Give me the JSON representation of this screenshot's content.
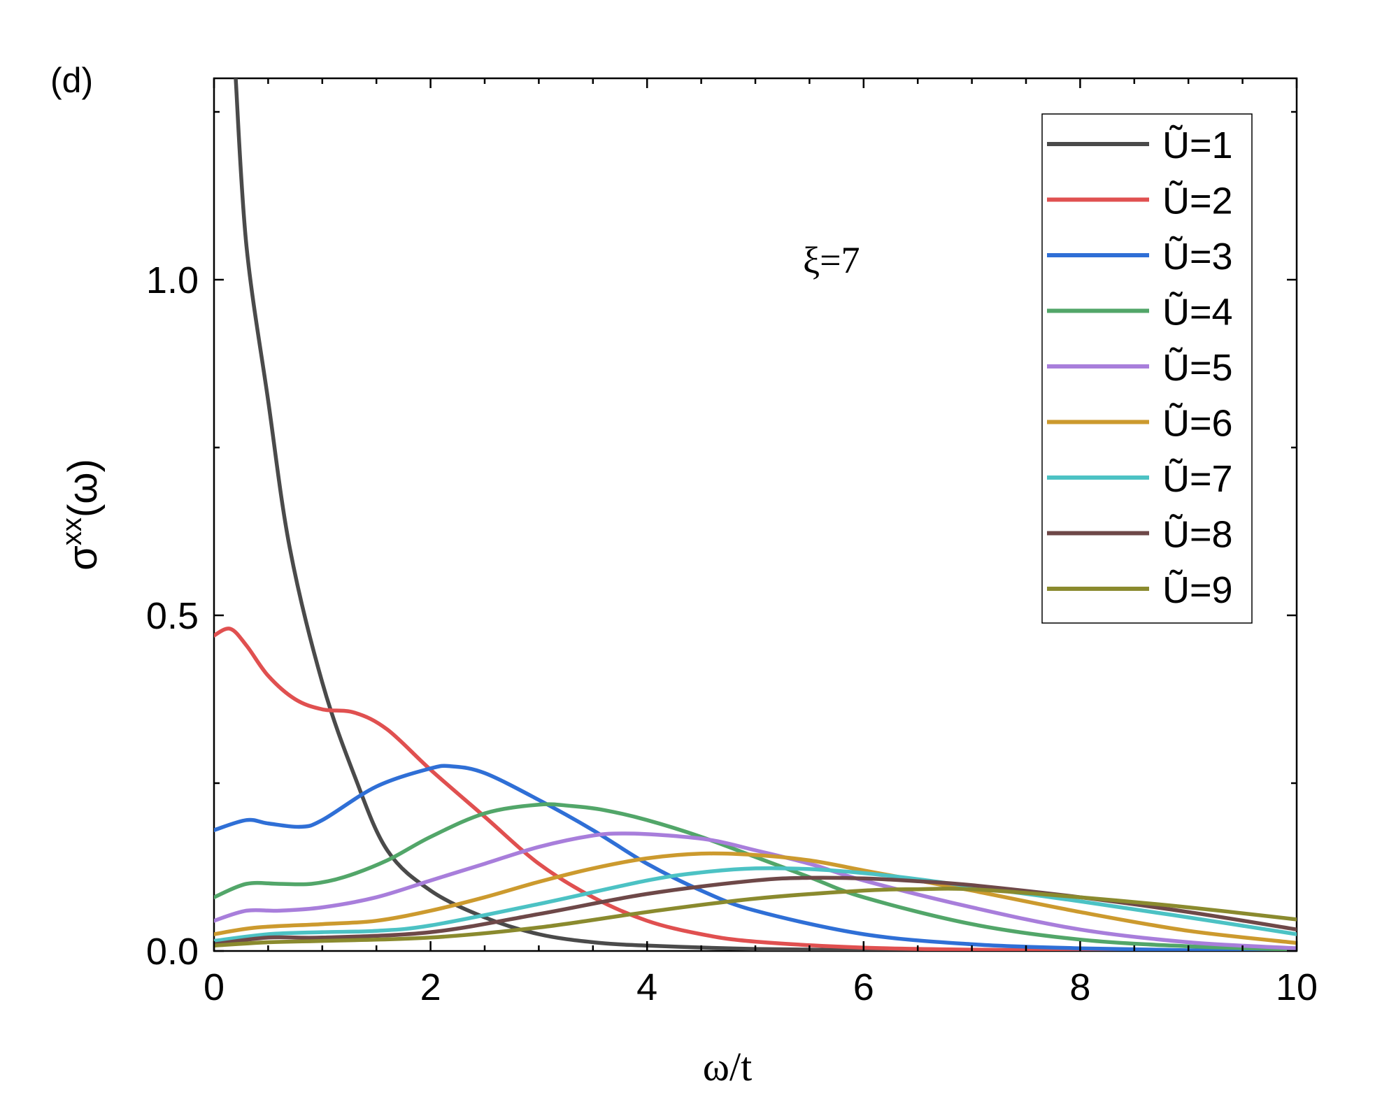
{
  "panel_label": "(d)",
  "annotation": "ξ=7",
  "chart_data": {
    "type": "line",
    "title": "",
    "xlabel": "ω/t",
    "ylabel_base": "σ",
    "ylabel_sup": "xx",
    "ylabel_tail": "(ω)",
    "xlim": [
      0,
      10
    ],
    "ylim": [
      0,
      1.3
    ],
    "x_ticks": [
      0,
      2,
      4,
      6,
      8,
      10
    ],
    "x_tick_labels": [
      "0",
      "2",
      "4",
      "6",
      "8",
      "10"
    ],
    "y_ticks": [
      0,
      0.5,
      1.0
    ],
    "y_tick_labels": [
      "0.0",
      "0.5",
      "1.0"
    ],
    "grid": false,
    "legend_position": "top-right",
    "series": [
      {
        "name": "Ũ=1",
        "color": "#4a4a4a",
        "x": [
          0.2,
          0.3,
          0.5,
          0.7,
          1.0,
          1.3,
          1.6,
          2.0,
          2.5,
          3.0,
          3.5,
          4.0,
          5.0,
          6.0,
          7.0,
          8.0,
          10.0
        ],
        "y": [
          1.3,
          1.05,
          0.82,
          0.6,
          0.4,
          0.26,
          0.15,
          0.09,
          0.05,
          0.025,
          0.013,
          0.008,
          0.003,
          0.001,
          0.0005,
          0.0002,
          0.0
        ]
      },
      {
        "name": "Ũ=2",
        "color": "#e05050",
        "x": [
          0,
          0.15,
          0.3,
          0.5,
          0.75,
          1.0,
          1.3,
          1.6,
          2.0,
          2.5,
          3.0,
          3.5,
          4.0,
          4.5,
          5.0,
          6.0,
          7.0,
          8.0,
          10.0
        ],
        "y": [
          0.47,
          0.48,
          0.455,
          0.41,
          0.375,
          0.36,
          0.355,
          0.33,
          0.27,
          0.2,
          0.13,
          0.08,
          0.045,
          0.025,
          0.014,
          0.005,
          0.002,
          0.001,
          0.0
        ]
      },
      {
        "name": "Ũ=3",
        "color": "#2f6fd6",
        "x": [
          0,
          0.3,
          0.5,
          0.8,
          1.0,
          1.5,
          2.0,
          2.2,
          2.5,
          3.0,
          3.5,
          4.0,
          4.5,
          5.0,
          6.0,
          7.0,
          8.0,
          9.0,
          10.0
        ],
        "y": [
          0.18,
          0.195,
          0.19,
          0.185,
          0.195,
          0.245,
          0.272,
          0.275,
          0.265,
          0.225,
          0.18,
          0.13,
          0.09,
          0.06,
          0.025,
          0.01,
          0.004,
          0.001,
          0.0
        ]
      },
      {
        "name": "Ũ=4",
        "color": "#52a669",
        "x": [
          0,
          0.3,
          0.6,
          0.9,
          1.2,
          1.6,
          2.0,
          2.5,
          3.0,
          3.3,
          3.6,
          4.0,
          4.5,
          5.0,
          5.5,
          6.0,
          7.0,
          8.0,
          9.0,
          10.0
        ],
        "y": [
          0.08,
          0.1,
          0.1,
          0.1,
          0.11,
          0.135,
          0.17,
          0.205,
          0.218,
          0.216,
          0.21,
          0.195,
          0.17,
          0.14,
          0.11,
          0.08,
          0.04,
          0.017,
          0.007,
          0.002
        ]
      },
      {
        "name": "Ũ=5",
        "color": "#a87edb",
        "x": [
          0,
          0.3,
          0.6,
          1.0,
          1.5,
          2.0,
          2.5,
          3.0,
          3.5,
          3.8,
          4.2,
          4.6,
          5.0,
          5.5,
          6.0,
          7.0,
          8.0,
          9.0,
          10.0
        ],
        "y": [
          0.045,
          0.06,
          0.06,
          0.065,
          0.08,
          0.105,
          0.13,
          0.155,
          0.172,
          0.175,
          0.172,
          0.165,
          0.15,
          0.13,
          0.105,
          0.065,
          0.032,
          0.013,
          0.004
        ]
      },
      {
        "name": "Ũ=6",
        "color": "#cc9a2e",
        "x": [
          0,
          0.4,
          1.0,
          1.5,
          2.0,
          2.5,
          3.0,
          3.5,
          4.0,
          4.5,
          5.0,
          5.5,
          6.0,
          6.5,
          7.0,
          8.0,
          9.0,
          10.0
        ],
        "y": [
          0.025,
          0.035,
          0.04,
          0.045,
          0.06,
          0.08,
          0.103,
          0.123,
          0.138,
          0.145,
          0.143,
          0.135,
          0.12,
          0.105,
          0.09,
          0.058,
          0.03,
          0.012
        ]
      },
      {
        "name": "Ũ=7",
        "color": "#4cc2c4",
        "x": [
          0,
          0.5,
          1.0,
          1.5,
          2.0,
          3.0,
          4.0,
          4.5,
          5.0,
          5.5,
          6.0,
          6.5,
          7.0,
          8.0,
          9.0,
          10.0
        ],
        "y": [
          0.015,
          0.025,
          0.028,
          0.03,
          0.038,
          0.07,
          0.105,
          0.117,
          0.123,
          0.122,
          0.116,
          0.107,
          0.096,
          0.074,
          0.05,
          0.025
        ]
      },
      {
        "name": "Ũ=8",
        "color": "#6e4848",
        "x": [
          0,
          0.5,
          1.0,
          2.0,
          3.0,
          4.0,
          5.0,
          5.5,
          6.0,
          6.5,
          7.0,
          8.0,
          9.0,
          10.0
        ],
        "y": [
          0.01,
          0.02,
          0.02,
          0.028,
          0.055,
          0.085,
          0.105,
          0.109,
          0.108,
          0.104,
          0.098,
          0.08,
          0.058,
          0.032
        ]
      },
      {
        "name": "Ũ=9",
        "color": "#8a8a2e",
        "x": [
          0,
          0.5,
          1.0,
          2.0,
          3.0,
          4.0,
          5.0,
          6.0,
          6.5,
          7.0,
          8.0,
          9.0,
          10.0
        ],
        "y": [
          0.008,
          0.013,
          0.015,
          0.02,
          0.035,
          0.058,
          0.078,
          0.09,
          0.092,
          0.092,
          0.08,
          0.065,
          0.047
        ]
      }
    ]
  }
}
